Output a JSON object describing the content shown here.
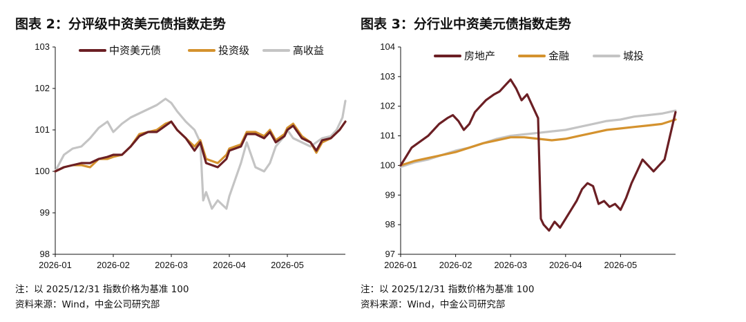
{
  "notes": {
    "base_note": "注：以 2025/12/31 指数价格为基准 100",
    "source_note": "资料来源：Wind，中金公司研究部"
  },
  "colors": {
    "brown": "#6b1f24",
    "gold": "#d4922e",
    "gray": "#c4c4c4"
  },
  "chart_data": [
    {
      "type": "line",
      "title": "图表 2：分评级中资美元债指数走势",
      "ylim": [
        98,
        103
      ],
      "yticks": [
        "98",
        "99",
        "100",
        "101",
        "102",
        "103"
      ],
      "xticks": [
        "2026-01",
        "2026-02",
        "2026-03",
        "2026-04",
        "2026-05"
      ],
      "xlim": [
        0,
        5.0
      ],
      "legend_position": "top",
      "grid": false,
      "series": [
        {
          "name": "中资美元债",
          "color": "brown",
          "x": [
            0,
            0.15,
            0.3,
            0.45,
            0.6,
            0.75,
            0.9,
            1.0,
            1.15,
            1.3,
            1.45,
            1.6,
            1.75,
            1.9,
            2.0,
            2.1,
            2.25,
            2.4,
            2.5,
            2.6,
            2.7,
            2.8,
            2.95,
            3.0,
            3.1,
            3.2,
            3.3,
            3.45,
            3.6,
            3.7,
            3.8,
            3.95,
            4.0,
            4.1,
            4.25,
            4.4,
            4.5,
            4.6,
            4.75,
            4.9,
            5.0
          ],
          "values": [
            100.0,
            100.1,
            100.15,
            100.2,
            100.2,
            100.3,
            100.35,
            100.4,
            100.4,
            100.6,
            100.85,
            100.95,
            100.95,
            101.1,
            101.2,
            101.0,
            100.8,
            100.5,
            100.7,
            100.2,
            100.15,
            100.1,
            100.3,
            100.5,
            100.55,
            100.6,
            100.9,
            100.9,
            100.8,
            100.95,
            100.7,
            100.85,
            101.0,
            101.1,
            100.8,
            100.7,
            100.5,
            100.75,
            100.8,
            101.0,
            101.2
          ]
        },
        {
          "name": "投资级",
          "color": "gold",
          "x": [
            0,
            0.15,
            0.3,
            0.45,
            0.6,
            0.75,
            0.9,
            1.0,
            1.15,
            1.3,
            1.45,
            1.6,
            1.75,
            1.9,
            2.0,
            2.1,
            2.25,
            2.4,
            2.5,
            2.6,
            2.7,
            2.8,
            2.95,
            3.0,
            3.1,
            3.2,
            3.3,
            3.45,
            3.6,
            3.7,
            3.8,
            3.95,
            4.0,
            4.1,
            4.25,
            4.4,
            4.5,
            4.6,
            4.75,
            4.9,
            5.0
          ],
          "values": [
            100.0,
            100.1,
            100.15,
            100.15,
            100.1,
            100.3,
            100.3,
            100.35,
            100.4,
            100.6,
            100.9,
            100.95,
            101.0,
            101.15,
            101.2,
            101.0,
            100.8,
            100.6,
            100.75,
            100.3,
            100.25,
            100.2,
            100.4,
            100.55,
            100.6,
            100.65,
            100.95,
            100.95,
            100.85,
            101.0,
            100.75,
            100.9,
            101.05,
            101.15,
            100.85,
            100.7,
            100.45,
            100.7,
            100.8,
            101.0,
            101.2
          ]
        },
        {
          "name": "高收益",
          "color": "gray",
          "x": [
            0,
            0.15,
            0.3,
            0.45,
            0.6,
            0.75,
            0.9,
            1.0,
            1.15,
            1.3,
            1.45,
            1.6,
            1.75,
            1.9,
            2.0,
            2.1,
            2.25,
            2.4,
            2.5,
            2.55,
            2.6,
            2.7,
            2.8,
            2.95,
            3.0,
            3.1,
            3.2,
            3.3,
            3.45,
            3.6,
            3.7,
            3.8,
            3.95,
            4.0,
            4.1,
            4.25,
            4.4,
            4.5,
            4.6,
            4.75,
            4.85,
            4.95,
            5.0
          ],
          "values": [
            100.0,
            100.4,
            100.55,
            100.6,
            100.8,
            101.05,
            101.2,
            100.95,
            101.15,
            101.3,
            101.4,
            101.5,
            101.6,
            101.75,
            101.65,
            101.45,
            101.2,
            101.0,
            100.7,
            99.3,
            99.5,
            99.1,
            99.3,
            99.1,
            99.4,
            99.8,
            100.2,
            100.7,
            100.1,
            100.0,
            100.2,
            100.6,
            100.85,
            101.0,
            100.8,
            100.7,
            100.6,
            100.7,
            100.8,
            100.85,
            101.0,
            101.3,
            101.7
          ]
        }
      ]
    },
    {
      "type": "line",
      "title": "图表 3：分行业中资美元债指数走势",
      "ylim": [
        97,
        104
      ],
      "yticks": [
        "97",
        "98",
        "99",
        "100",
        "101",
        "102",
        "103",
        "104"
      ],
      "xticks": [
        "2026-01",
        "2026-02",
        "2026-03",
        "2026-04",
        "2026-05"
      ],
      "xlim": [
        0,
        5.0
      ],
      "legend_position": "top",
      "grid": false,
      "series": [
        {
          "name": "房地产",
          "color": "brown",
          "x": [
            0,
            0.1,
            0.2,
            0.35,
            0.5,
            0.6,
            0.7,
            0.85,
            0.95,
            1.05,
            1.15,
            1.25,
            1.35,
            1.45,
            1.55,
            1.7,
            1.8,
            1.9,
            2.0,
            2.1,
            2.2,
            2.3,
            2.4,
            2.5,
            2.55,
            2.6,
            2.7,
            2.8,
            2.9,
            3.0,
            3.1,
            3.2,
            3.3,
            3.4,
            3.5,
            3.6,
            3.7,
            3.8,
            3.9,
            4.0,
            4.1,
            4.2,
            4.3,
            4.4,
            4.5,
            4.6,
            4.7,
            4.8,
            4.9,
            5.0
          ],
          "values": [
            100.0,
            100.3,
            100.6,
            100.8,
            101.0,
            101.2,
            101.4,
            101.6,
            101.7,
            101.5,
            101.2,
            101.4,
            101.8,
            102.0,
            102.2,
            102.4,
            102.5,
            102.7,
            102.9,
            102.6,
            102.2,
            102.4,
            102.0,
            101.6,
            98.2,
            98.0,
            97.8,
            98.1,
            97.9,
            98.2,
            98.5,
            98.8,
            99.2,
            99.4,
            99.3,
            98.7,
            98.8,
            98.6,
            98.7,
            98.5,
            98.9,
            99.4,
            99.8,
            100.2,
            100.0,
            99.8,
            100.0,
            100.2,
            101.0,
            101.8
          ]
        },
        {
          "name": "金融",
          "color": "gold",
          "x": [
            0,
            0.25,
            0.5,
            0.75,
            1.0,
            1.25,
            1.5,
            1.75,
            2.0,
            2.25,
            2.5,
            2.75,
            3.0,
            3.25,
            3.5,
            3.75,
            4.0,
            4.25,
            4.5,
            4.75,
            5.0
          ],
          "values": [
            100.0,
            100.15,
            100.25,
            100.35,
            100.45,
            100.6,
            100.75,
            100.85,
            100.95,
            100.95,
            100.9,
            100.85,
            100.9,
            101.0,
            101.1,
            101.2,
            101.25,
            101.3,
            101.35,
            101.4,
            101.55
          ]
        },
        {
          "name": "城投",
          "color": "gray",
          "x": [
            0,
            0.25,
            0.5,
            0.75,
            1.0,
            1.25,
            1.5,
            1.75,
            2.0,
            2.25,
            2.5,
            2.75,
            3.0,
            3.25,
            3.5,
            3.75,
            4.0,
            4.25,
            4.5,
            4.75,
            5.0
          ],
          "values": [
            99.95,
            100.1,
            100.2,
            100.35,
            100.5,
            100.6,
            100.75,
            100.9,
            101.0,
            101.05,
            101.1,
            101.15,
            101.2,
            101.3,
            101.4,
            101.5,
            101.55,
            101.65,
            101.7,
            101.75,
            101.85
          ]
        }
      ]
    }
  ]
}
